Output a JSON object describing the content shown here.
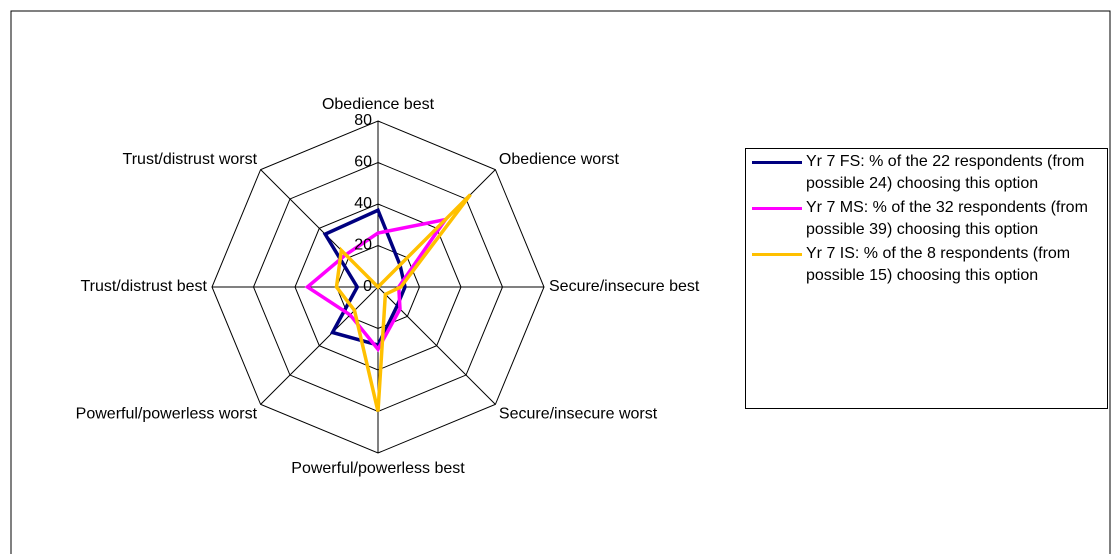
{
  "chart_data": {
    "type": "radar",
    "categories": [
      "Obedience best",
      "Obedience worst",
      "Secure/insecure best",
      "Secure/insecure worst",
      "Powerful/powerless best",
      "Powerful/powerless worst",
      "Trust/distrust best",
      "Trust/distrust worst"
    ],
    "ylim": [
      0,
      80
    ],
    "yticks": [
      0,
      20,
      40,
      60,
      80
    ],
    "grid": true,
    "legend": "right",
    "series": [
      {
        "name": "Yr 7 FS: % of  the 22 respondents (from possible 24) choosing this option",
        "color": "#000080",
        "values": [
          37,
          15,
          13,
          13,
          28,
          31,
          10,
          36
        ]
      },
      {
        "name": "Yr 7 MS: % of  the 32 respondents (from possible 39) choosing this option",
        "color": "#ff00ff",
        "values": [
          26,
          46,
          10,
          15,
          30,
          19,
          34,
          22
        ]
      },
      {
        "name": "Yr 7 IS: % of  the 8  respondents (from possible 15) choosing this option",
        "color": "#ffc000",
        "values": [
          0,
          63,
          11,
          5,
          60,
          16,
          20,
          25
        ]
      }
    ]
  }
}
